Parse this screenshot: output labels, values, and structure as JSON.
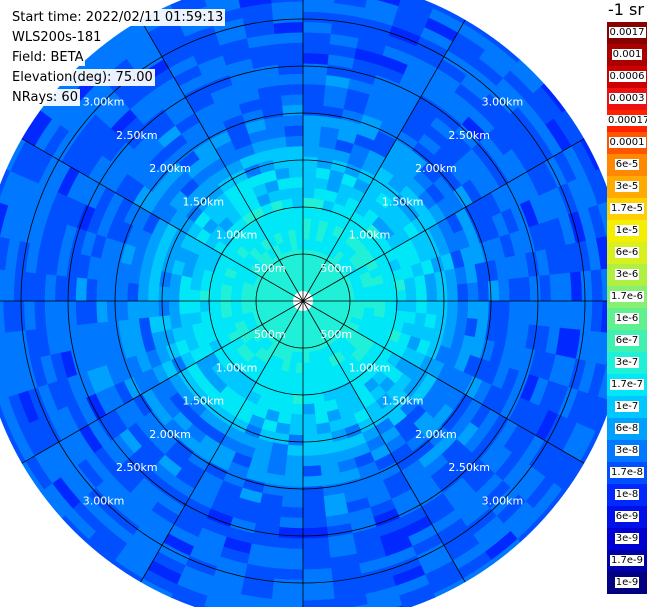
{
  "info": {
    "start_time": "Start time: 2022/02/11 01:59:13",
    "instrument": "WLS200s-181",
    "field": "Field: BETA",
    "elevation": "Elevation(deg): 75.00",
    "nrays": "NRays: 60"
  },
  "colorbar": {
    "title": "-1 sr",
    "entries": [
      {
        "label": "0.0017",
        "color": "#880000"
      },
      {
        "label": "0.001",
        "color": "#aa0000"
      },
      {
        "label": "0.0006",
        "color": "#cc0000"
      },
      {
        "label": "0.0003",
        "color": "#ee1111"
      },
      {
        "label": "0.00017",
        "color": "#ff2200"
      },
      {
        "label": "0.0001",
        "color": "#ff5500"
      },
      {
        "label": "6e-5",
        "color": "#ff8800"
      },
      {
        "label": "3e-5",
        "color": "#ffaa00"
      },
      {
        "label": "1.7e-5",
        "color": "#ffd000"
      },
      {
        "label": "1e-5",
        "color": "#f4ee00"
      },
      {
        "label": "6e-6",
        "color": "#d8f020"
      },
      {
        "label": "3e-6",
        "color": "#b0f040"
      },
      {
        "label": "1.7e-6",
        "color": "#88f070"
      },
      {
        "label": "1e-6",
        "color": "#60f090"
      },
      {
        "label": "6e-7",
        "color": "#40f0b0"
      },
      {
        "label": "3e-7",
        "color": "#20f0d8"
      },
      {
        "label": "1.7e-7",
        "color": "#00e8f8"
      },
      {
        "label": "1e-7",
        "color": "#00c8ff"
      },
      {
        "label": "6e-8",
        "color": "#00a0ff"
      },
      {
        "label": "3e-8",
        "color": "#0078ff"
      },
      {
        "label": "1.7e-8",
        "color": "#0050ff"
      },
      {
        "label": "1e-8",
        "color": "#0028ff"
      },
      {
        "label": "6e-9",
        "color": "#0010e8"
      },
      {
        "label": "3e-9",
        "color": "#0000d0"
      },
      {
        "label": "1.7e-9",
        "color": "#0000a8"
      },
      {
        "label": "1e-9",
        "color": "#000080"
      }
    ]
  },
  "chart_data": {
    "type": "heatmap",
    "projection": "polar (PPI scan)",
    "field": "BETA",
    "units": "-1 sr",
    "elevation_deg": 75.0,
    "n_rays": 60,
    "range_rings_km": [
      0.5,
      1.0,
      1.5,
      2.0,
      2.5,
      3.0
    ],
    "range_ring_labels": [
      "500m",
      "1.00km",
      "1.50km",
      "2.00km",
      "2.50km",
      "3.00km"
    ],
    "spoke_angles_deg": [
      0,
      30,
      60,
      90,
      120,
      150,
      180,
      210,
      240,
      270,
      300,
      330
    ],
    "max_range_km": 3.45,
    "radial_profile": [
      {
        "range_km": 0.5,
        "value": "3e-7"
      },
      {
        "range_km": 1.0,
        "value": "1.7e-7"
      },
      {
        "range_km": 1.5,
        "value": "1e-7"
      },
      {
        "range_km": 2.0,
        "value": "3e-8"
      },
      {
        "range_km": 2.5,
        "value": "1.7e-8"
      },
      {
        "range_km": 3.0,
        "value": "1.7e-8"
      }
    ]
  }
}
